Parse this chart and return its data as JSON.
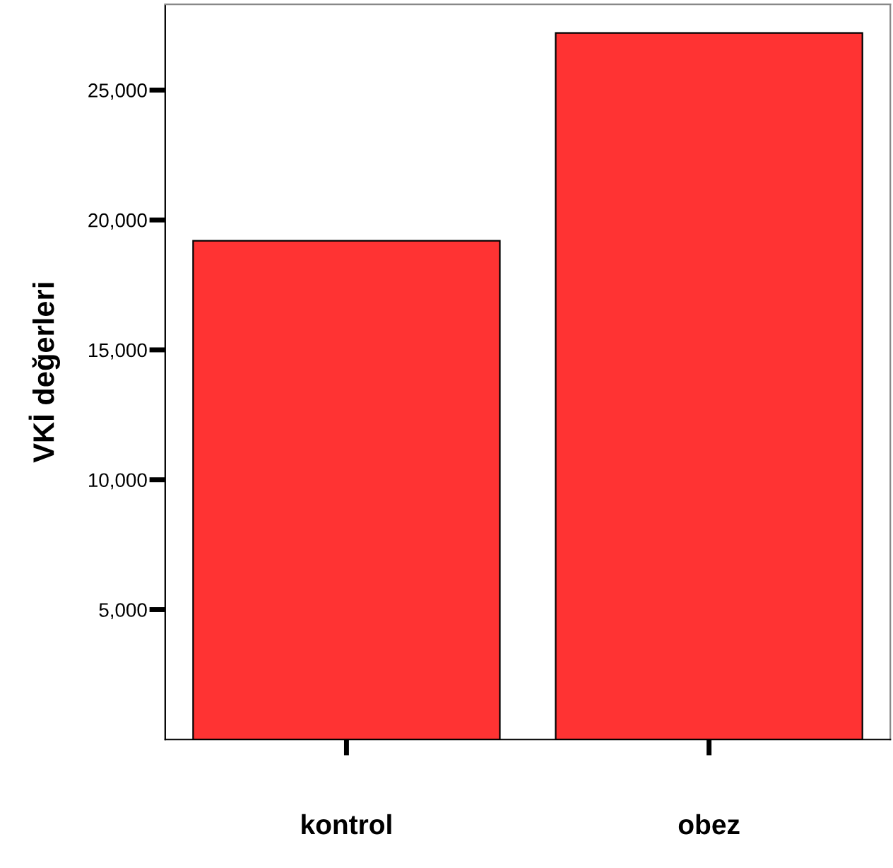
{
  "chart_data": {
    "type": "bar",
    "ylabel": "VKİ değerleri",
    "categories": [
      "kontrol",
      "obez"
    ],
    "values": [
      19200,
      27200
    ],
    "color": "#ff3333",
    "ylim": [
      0,
      28300
    ],
    "yticks": [
      {
        "value": 5000,
        "label": "5,000"
      },
      {
        "value": 10000,
        "label": "10,000"
      },
      {
        "value": 15000,
        "label": "15,000"
      },
      {
        "value": 20000,
        "label": "20,000"
      },
      {
        "value": 25000,
        "label": "25,000"
      }
    ],
    "grid": false,
    "legend": false
  }
}
